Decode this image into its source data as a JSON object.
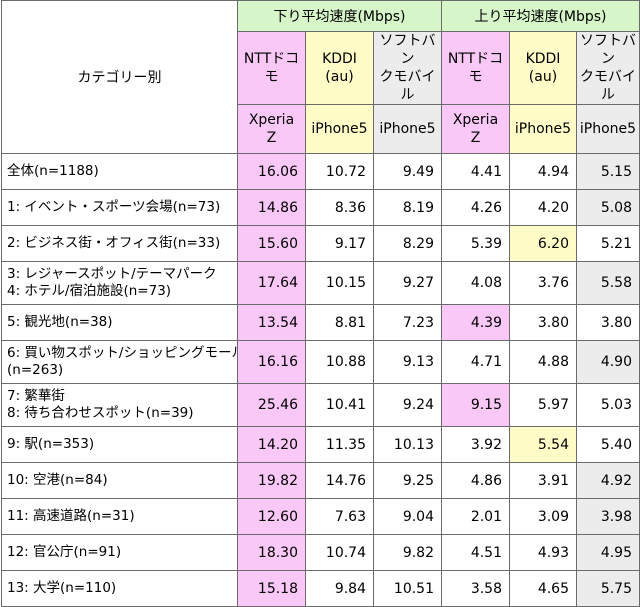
{
  "header": {
    "category_label": "カテゴリー別",
    "down_group": "下り平均速度(Mbps)",
    "up_group": "上り平均速度(Mbps)",
    "carriers": [
      {
        "lines": [
          "NTTドコ",
          "モ"
        ],
        "device_lines": [
          "Xperia",
          "Z"
        ]
      },
      {
        "lines": [
          "KDDI",
          "(au)"
        ],
        "device_lines": [
          "iPhone5"
        ]
      },
      {
        "lines": [
          "ソフトバン",
          "クモバイル"
        ],
        "device_lines": [
          "iPhone5"
        ]
      }
    ]
  },
  "colors": {
    "group_header": "#d6f5c8",
    "docomo": "#f9c8f7",
    "kddi": "#fffcc8",
    "softbank": "#ececec"
  },
  "chart_data": {
    "type": "table",
    "columns": [
      "下り NTTドコモ Xperia Z",
      "下り KDDI(au) iPhone5",
      "下り ソフトバンクモバイル iPhone5",
      "上り NTTドコモ Xperia Z",
      "上り KDDI(au) iPhone5",
      "上り ソフトバンクモバイル iPhone5"
    ],
    "rows": [
      {
        "label": [
          "全体(n=1188)"
        ],
        "values": [
          "16.06",
          "10.72",
          "9.49",
          "4.41",
          "4.94",
          "5.15"
        ],
        "highlight": [
          "docomo",
          null,
          null,
          null,
          null,
          "softbank"
        ]
      },
      {
        "label": [
          "1: イベント・スポーツ会場(n=73)"
        ],
        "values": [
          "14.86",
          "8.36",
          "8.19",
          "4.26",
          "4.20",
          "5.08"
        ],
        "highlight": [
          "docomo",
          null,
          null,
          null,
          null,
          "softbank"
        ]
      },
      {
        "label": [
          "2: ビジネス街・オフィス街(n=33)"
        ],
        "values": [
          "15.60",
          "9.17",
          "8.29",
          "5.39",
          "6.20",
          "5.21"
        ],
        "highlight": [
          "docomo",
          null,
          null,
          null,
          "kddi",
          null
        ]
      },
      {
        "label": [
          "3: レジャースポット/テーマパーク",
          "4: ホテル/宿泊施設(n=73)"
        ],
        "values": [
          "17.64",
          "10.15",
          "9.27",
          "4.08",
          "3.76",
          "5.58"
        ],
        "highlight": [
          "docomo",
          null,
          null,
          null,
          null,
          "softbank"
        ]
      },
      {
        "label": [
          "5: 観光地(n=38)"
        ],
        "values": [
          "13.54",
          "8.81",
          "7.23",
          "4.39",
          "3.80",
          "3.80"
        ],
        "highlight": [
          "docomo",
          null,
          null,
          "docomo",
          null,
          null
        ]
      },
      {
        "label": [
          "6: 買い物スポット/ショッピングモール",
          "(n=263)"
        ],
        "values": [
          "16.16",
          "10.88",
          "9.13",
          "4.71",
          "4.88",
          "4.90"
        ],
        "highlight": [
          "docomo",
          null,
          null,
          null,
          null,
          "softbank"
        ]
      },
      {
        "label": [
          "7: 繁華街",
          "8: 待ち合わせスポット(n=39)"
        ],
        "values": [
          "25.46",
          "10.41",
          "9.24",
          "9.15",
          "5.97",
          "5.03"
        ],
        "highlight": [
          "docomo",
          null,
          null,
          "docomo",
          null,
          null
        ]
      },
      {
        "label": [
          "9: 駅(n=353)"
        ],
        "values": [
          "14.20",
          "11.35",
          "10.13",
          "3.92",
          "5.54",
          "5.40"
        ],
        "highlight": [
          "docomo",
          null,
          null,
          null,
          "kddi",
          null
        ]
      },
      {
        "label": [
          "10: 空港(n=84)"
        ],
        "values": [
          "19.82",
          "14.76",
          "9.25",
          "4.86",
          "3.91",
          "4.92"
        ],
        "highlight": [
          "docomo",
          null,
          null,
          null,
          null,
          "softbank"
        ]
      },
      {
        "label": [
          "11: 高速道路(n=31)"
        ],
        "values": [
          "12.60",
          "7.63",
          "9.04",
          "2.01",
          "3.09",
          "3.98"
        ],
        "highlight": [
          "docomo",
          null,
          null,
          null,
          null,
          "softbank"
        ]
      },
      {
        "label": [
          "12: 官公庁(n=91)"
        ],
        "values": [
          "18.30",
          "10.74",
          "9.82",
          "4.51",
          "4.93",
          "4.95"
        ],
        "highlight": [
          "docomo",
          null,
          null,
          null,
          null,
          "softbank"
        ]
      },
      {
        "label": [
          "13: 大学(n=110)"
        ],
        "values": [
          "15.18",
          "9.84",
          "10.51",
          "3.58",
          "4.65",
          "5.75"
        ],
        "highlight": [
          "docomo",
          null,
          null,
          null,
          null,
          "softbank"
        ]
      }
    ]
  }
}
